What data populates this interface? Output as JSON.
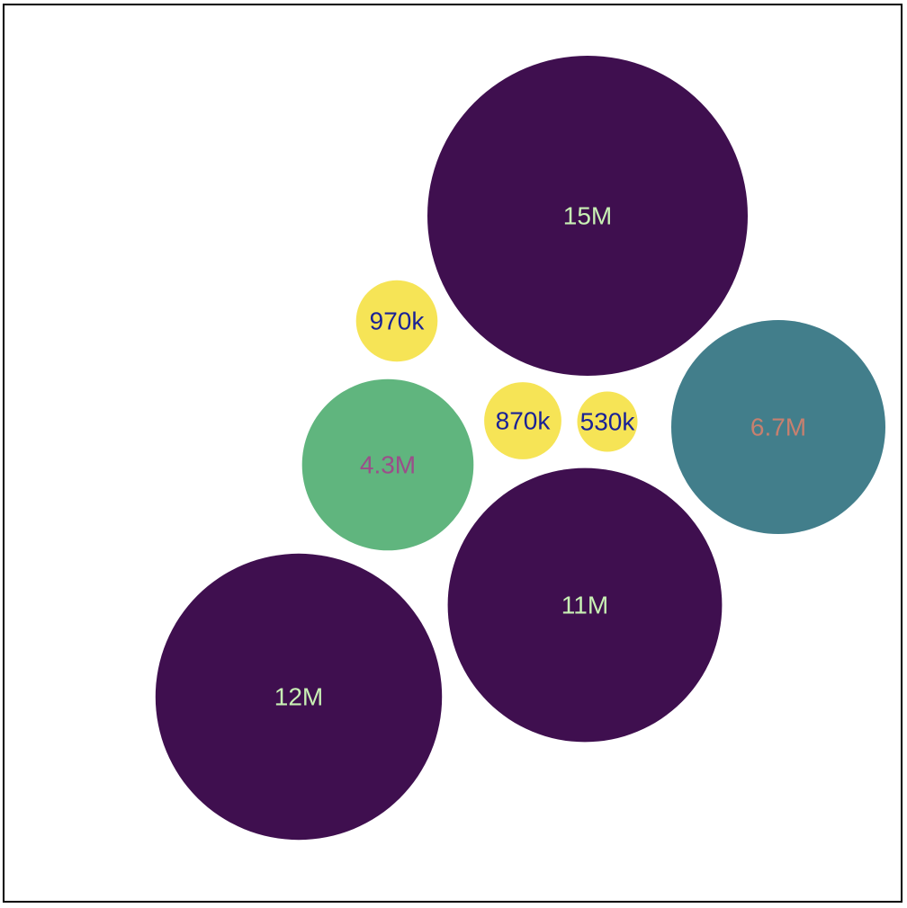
{
  "chart_data": {
    "type": "bubble",
    "title": "",
    "items": [
      {
        "label": "15M",
        "value": 15000000,
        "color": "#3f0f4f",
        "label_color": "#c8f0b4"
      },
      {
        "label": "970k",
        "value": 970000,
        "color": "#f6e456",
        "label_color": "#1a2296"
      },
      {
        "label": "4.3M",
        "value": 4300000,
        "color": "#60b57e",
        "label_color": "#9b4e8a"
      },
      {
        "label": "870k",
        "value": 870000,
        "color": "#f6e456",
        "label_color": "#1a2296"
      },
      {
        "label": "530k",
        "value": 530000,
        "color": "#f6e456",
        "label_color": "#1a2296"
      },
      {
        "label": "6.7M",
        "value": 6700000,
        "color": "#427e8b",
        "label_color": "#c7806f"
      },
      {
        "label": "11M",
        "value": 11000000,
        "color": "#3f0f4f",
        "label_color": "#c8f0b4"
      },
      {
        "label": "12M",
        "value": 12000000,
        "color": "#3f0f4f",
        "label_color": "#c8f0b4"
      }
    ]
  }
}
